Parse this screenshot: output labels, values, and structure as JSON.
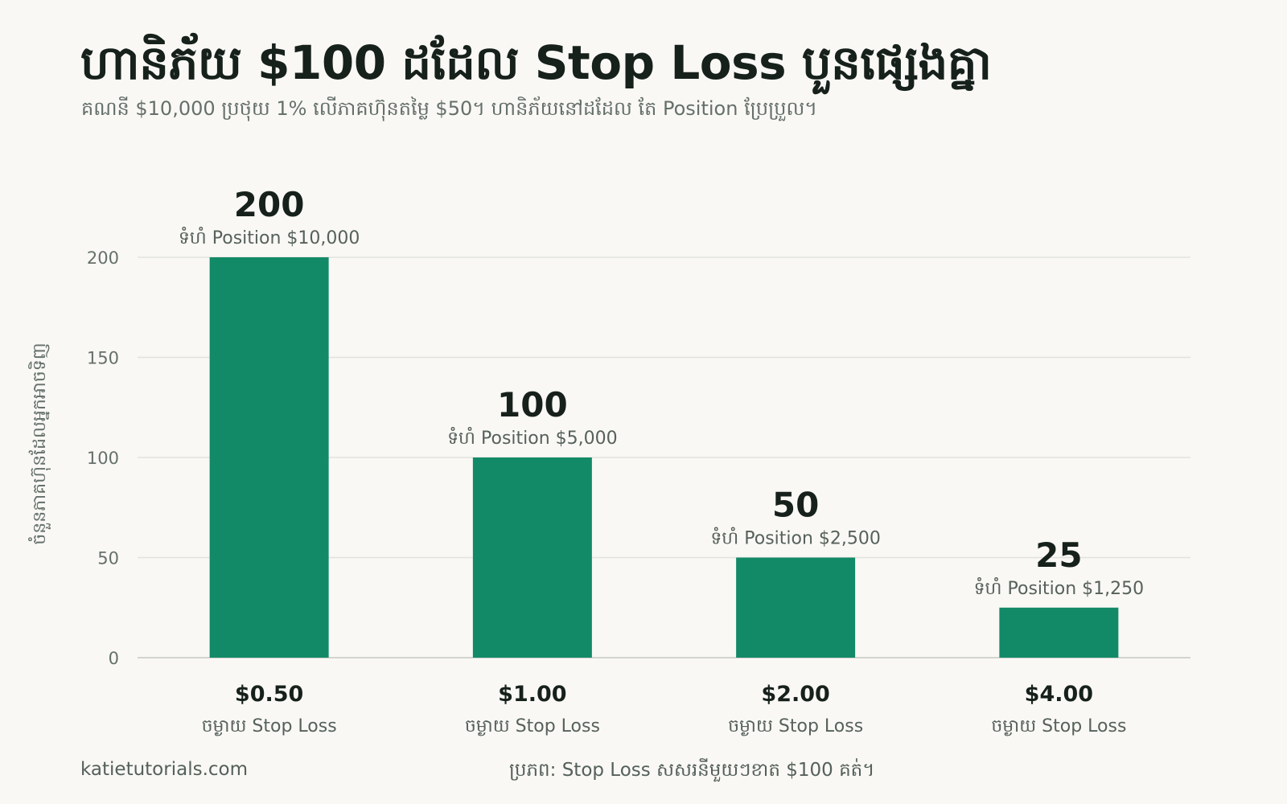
{
  "header": {
    "title": "ហានិភ័យ $100 ដដែល Stop Loss បួនផ្សេងគ្នា",
    "subtitle": "គណនី $10,000 ប្រថុយ 1% លើភាគហ៊ុនតម្លៃ $50។ ហានិភ័យនៅដដែល តែ Position ប្រែប្រួល។"
  },
  "footer": {
    "brand": "katietutorials.com",
    "source": "ប្រភព: Stop Loss សសរនីមួយៗខាត $100 គត់។"
  },
  "colors": {
    "bar": "#138a67",
    "grid": "#e2e2dd",
    "axis": "#d4d4cf",
    "tick": "#66706a",
    "value": "#17211c",
    "sub": "#57615b"
  },
  "chart_data": {
    "type": "bar",
    "ylabel": "ចំនួនភាគហ៊ុនដែលអ្នកអាចទិញ",
    "ylim": [
      0,
      200
    ],
    "yticks": [
      0,
      50,
      100,
      150,
      200
    ],
    "grid": true,
    "categories": [
      "$0.50",
      "$1.00",
      "$2.00",
      "$4.00"
    ],
    "category_sublabels": [
      "ចម្ងាយ Stop Loss",
      "ចម្ងាយ Stop Loss",
      "ចម្ងាយ Stop Loss",
      "ចម្ងាយ Stop Loss"
    ],
    "values": [
      200,
      100,
      50,
      25
    ],
    "value_labels": [
      "200",
      "100",
      "50",
      "25"
    ],
    "annotations": [
      "ទំហំ Position $10,000",
      "ទំហំ Position $5,000",
      "ទំហំ Position $2,500",
      "ទំហំ Position $1,250"
    ]
  }
}
